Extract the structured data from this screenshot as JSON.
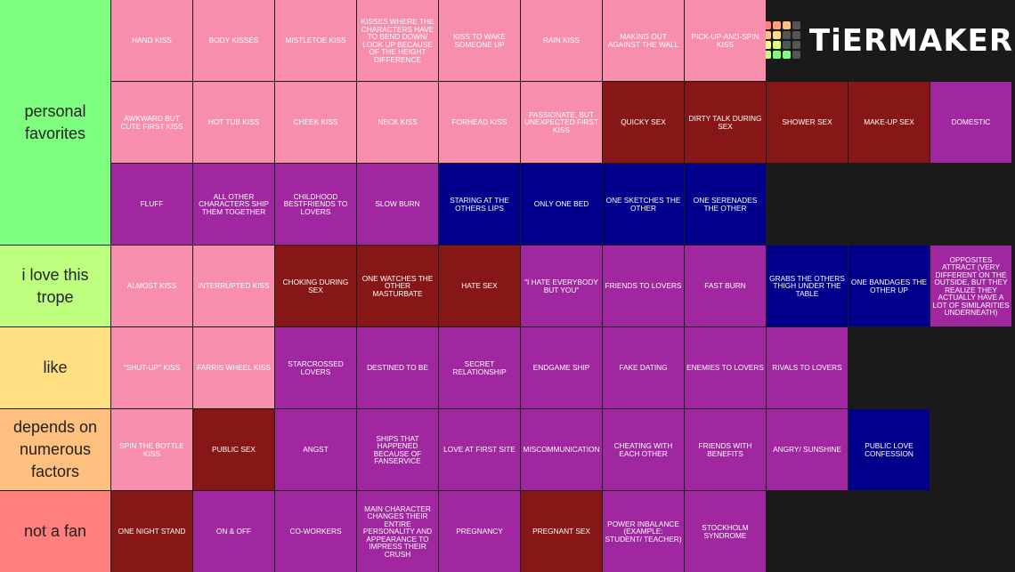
{
  "logo": "TiERMAKER",
  "tiers": [
    {
      "label": "personal favorites",
      "color": "#7fff7f",
      "items": [
        {
          "text": "HAND KISS",
          "color": "#f78fac"
        },
        {
          "text": "BODY KISSES",
          "color": "#f78fac"
        },
        {
          "text": "MISTLETOE KISS",
          "color": "#f78fac"
        },
        {
          "text": "KISSES WHERE THE CHARACTERS HAVE TO BEND DOWN/ LOOK UP BECAUSE OF THE HEIGHT DIFFERENCE",
          "color": "#f78fac"
        },
        {
          "text": "KISS TO WAKE SOMEONE UP",
          "color": "#f78fac"
        },
        {
          "text": "RAIN KISS",
          "color": "#f78fac"
        },
        {
          "text": "MAKING OUT AGAINST THE WALL",
          "color": "#f78fac"
        },
        {
          "text": "PICK-UP-AND-SPIN KISS",
          "color": "#f78fac"
        },
        {
          "text": "AWKWARD BUT CUTE FIRST KISS",
          "color": "#f78fac"
        },
        {
          "text": "HOT TUB KISS",
          "color": "#f78fac"
        },
        {
          "text": "CHEEK KISS",
          "color": "#f78fac"
        },
        {
          "text": "NECK KISS",
          "color": "#f78fac"
        },
        {
          "text": "FORHEAD KISS",
          "color": "#f78fac"
        },
        {
          "text": "PASSIONATE, BUT UNEXPECTED FIRST KISS",
          "color": "#f78fac"
        },
        {
          "text": "QUICKY SEX",
          "color": "#871717"
        },
        {
          "text": "DIRTY TALK DURING SEX",
          "color": "#871717"
        },
        {
          "text": "SHOWER SEX",
          "color": "#871717"
        },
        {
          "text": "MAKE-UP SEX",
          "color": "#871717"
        },
        {
          "text": "DOMESTIC",
          "color": "#a0279f"
        },
        {
          "text": "FLUFF",
          "color": "#a0279f"
        },
        {
          "text": "ALL OTHER CHARACTERS SHIP THEM TOGETHER",
          "color": "#a0279f"
        },
        {
          "text": "CHILDHOOD BESTFRIENDS TO LOVERS",
          "color": "#a0279f"
        },
        {
          "text": "SLOW BURN",
          "color": "#a0279f"
        },
        {
          "text": "STARING AT THE OTHERS LIPS",
          "color": "#00008b"
        },
        {
          "text": "ONLY ONE BED",
          "color": "#00008b"
        },
        {
          "text": "ONE SKETCHES THE OTHER",
          "color": "#00008b"
        },
        {
          "text": "ONE SERENADES THE OTHER",
          "color": "#00008b"
        }
      ]
    },
    {
      "label": "i love this trope",
      "color": "#bfff7f",
      "items": [
        {
          "text": "ALMOST KISS",
          "color": "#f78fac"
        },
        {
          "text": "INTERRUPTED KISS",
          "color": "#f78fac"
        },
        {
          "text": "CHOKING DURING SEX",
          "color": "#871717"
        },
        {
          "text": "ONE WATCHES THE OTHER MASTURBATE",
          "color": "#871717"
        },
        {
          "text": "HATE SEX",
          "color": "#871717"
        },
        {
          "text": "\"I HATE EVERYBODY BUT YOU\"",
          "color": "#a0279f"
        },
        {
          "text": "FRIENDS TO LOVERS",
          "color": "#a0279f"
        },
        {
          "text": "FAST BURN",
          "color": "#a0279f"
        },
        {
          "text": "GRABS THE OTHERS THIGH UNDER THE TABLE",
          "color": "#00008b"
        },
        {
          "text": "ONE BANDAGES THE OTHER UP",
          "color": "#00008b"
        },
        {
          "text": "OPPOSITES ATTRACT (VERY DIFFERENT ON THE OUTSIDE, BUT THEY REALIZE THEY ACTUALLY HAVE A LOT OF SIMILARITIES UNDERNEATH)",
          "color": "#a0279f"
        }
      ]
    },
    {
      "label": "like",
      "color": "#ffdf7f",
      "items": [
        {
          "text": "\"SHUT-UP\" KISS",
          "color": "#f78fac"
        },
        {
          "text": "FARRIS WHEEL KISS",
          "color": "#f78fac"
        },
        {
          "text": "STARCROSSED LOVERS",
          "color": "#a0279f"
        },
        {
          "text": "DESTINED TO BE",
          "color": "#a0279f"
        },
        {
          "text": "SECRET RELATIONSHIP",
          "color": "#a0279f"
        },
        {
          "text": "ENDGAME SHIP",
          "color": "#a0279f"
        },
        {
          "text": "FAKE DATING",
          "color": "#a0279f"
        },
        {
          "text": "ENEMIES TO LOVERS",
          "color": "#a0279f"
        },
        {
          "text": "RIVALS TO LOVERS",
          "color": "#a0279f"
        }
      ]
    },
    {
      "label": "depends on numerous factors",
      "color": "#ffbf7f",
      "items": [
        {
          "text": "SPIN THE BOTTLE KISS",
          "color": "#f78fac"
        },
        {
          "text": "PUBLIC SEX",
          "color": "#871717"
        },
        {
          "text": "ANGST",
          "color": "#a0279f"
        },
        {
          "text": "SHIPS THAT HAPPENED BECAUSE OF FANSERVICE",
          "color": "#a0279f"
        },
        {
          "text": "LOVE AT FIRST SITE",
          "color": "#a0279f"
        },
        {
          "text": "MISCOMMUNICATION",
          "color": "#a0279f"
        },
        {
          "text": "CHEATING WITH EACH OTHER",
          "color": "#a0279f"
        },
        {
          "text": "FRIENDS WITH BENEFITS",
          "color": "#a0279f"
        },
        {
          "text": "ANGRY/ SUNSHINE",
          "color": "#a0279f"
        },
        {
          "text": "PUBLIC LOVE CONFESSION",
          "color": "#00008b"
        }
      ]
    },
    {
      "label": "not a fan",
      "color": "#ff7f7f",
      "items": [
        {
          "text": "ONE NIGHT STAND",
          "color": "#871717"
        },
        {
          "text": "ON & OFF",
          "color": "#a0279f"
        },
        {
          "text": "CO-WORKERS",
          "color": "#a0279f"
        },
        {
          "text": "MAIN CHARACTER CHANGES THEIR ENTIRE PERSONALITY AND APPEARANCE TO IMPRESS THEIR CRUSH",
          "color": "#a0279f"
        },
        {
          "text": "PREGNANCY",
          "color": "#a0279f"
        },
        {
          "text": "PREGNANT SEX",
          "color": "#871717"
        },
        {
          "text": "POWER INBALANCE (EXAMPLE: STUDENT/ TEACHER)",
          "color": "#a0279f"
        },
        {
          "text": "STOCKHOLM SYNDROME",
          "color": "#a0279f"
        }
      ]
    }
  ]
}
